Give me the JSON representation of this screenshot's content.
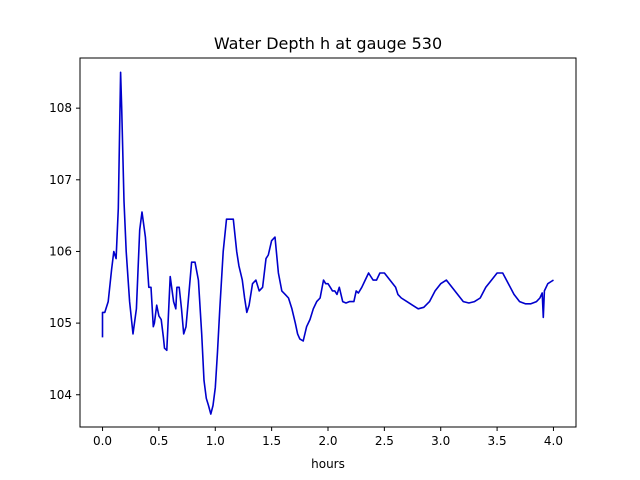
{
  "chart_data": {
    "type": "line",
    "title": "Water Depth h at gauge 530",
    "xlabel": "hours",
    "ylabel": "",
    "xlim": [
      -0.2,
      4.2
    ],
    "ylim": [
      103.55,
      108.7
    ],
    "xticks": [
      0.0,
      0.5,
      1.0,
      1.5,
      2.0,
      2.5,
      3.0,
      3.5,
      4.0
    ],
    "xtick_labels": [
      "0.0",
      "0.5",
      "1.0",
      "1.5",
      "2.0",
      "2.5",
      "3.0",
      "3.5",
      "4.0"
    ],
    "yticks": [
      104,
      105,
      106,
      107,
      108
    ],
    "ytick_labels": [
      "104",
      "105",
      "106",
      "107",
      "108"
    ],
    "grid": false,
    "series": [
      {
        "color": "#0000cc",
        "x": [
          0.0,
          0.0,
          0.02,
          0.05,
          0.08,
          0.1,
          0.12,
          0.14,
          0.16,
          0.17,
          0.19,
          0.21,
          0.24,
          0.27,
          0.3,
          0.33,
          0.35,
          0.38,
          0.41,
          0.43,
          0.45,
          0.46,
          0.48,
          0.5,
          0.52,
          0.54,
          0.55,
          0.57,
          0.6,
          0.63,
          0.65,
          0.66,
          0.68,
          0.7,
          0.72,
          0.74,
          0.76,
          0.79,
          0.82,
          0.85,
          0.88,
          0.9,
          0.92,
          0.94,
          0.96,
          0.98,
          1.0,
          1.02,
          1.04,
          1.07,
          1.1,
          1.13,
          1.16,
          1.19,
          1.21,
          1.24,
          1.26,
          1.28,
          1.3,
          1.33,
          1.36,
          1.39,
          1.42,
          1.45,
          1.47,
          1.5,
          1.53,
          1.56,
          1.59,
          1.62,
          1.65,
          1.68,
          1.71,
          1.73,
          1.75,
          1.78,
          1.81,
          1.84,
          1.87,
          1.9,
          1.93,
          1.96,
          1.98,
          2.0,
          2.02,
          2.04,
          2.06,
          2.08,
          2.1,
          2.13,
          2.16,
          2.19,
          2.21,
          2.23,
          2.25,
          2.27,
          2.3,
          2.33,
          2.36,
          2.38,
          2.4,
          2.43,
          2.46,
          2.5,
          2.55,
          2.6,
          2.62,
          2.65,
          2.7,
          2.75,
          2.8,
          2.85,
          2.9,
          2.95,
          3.0,
          3.05,
          3.1,
          3.15,
          3.2,
          3.25,
          3.3,
          3.35,
          3.4,
          3.45,
          3.5,
          3.55,
          3.6,
          3.65,
          3.7,
          3.75,
          3.8,
          3.85,
          3.88,
          3.9,
          3.91,
          3.92,
          3.95,
          3.98,
          4.0
        ],
        "y": [
          104.8,
          105.15,
          105.15,
          105.3,
          105.75,
          106.0,
          105.9,
          106.6,
          108.5,
          108.0,
          106.7,
          106.0,
          105.3,
          104.85,
          105.2,
          106.3,
          106.55,
          106.2,
          105.5,
          105.5,
          104.95,
          105.0,
          105.25,
          105.1,
          105.05,
          104.8,
          104.65,
          104.62,
          105.65,
          105.3,
          105.2,
          105.5,
          105.5,
          105.2,
          104.85,
          104.95,
          105.3,
          105.85,
          105.85,
          105.6,
          104.85,
          104.2,
          103.95,
          103.85,
          103.73,
          103.85,
          104.1,
          104.6,
          105.2,
          106.0,
          106.45,
          106.45,
          106.45,
          106.0,
          105.8,
          105.6,
          105.35,
          105.15,
          105.25,
          105.55,
          105.6,
          105.45,
          105.5,
          105.9,
          105.95,
          106.15,
          106.2,
          105.7,
          105.45,
          105.4,
          105.35,
          105.2,
          105.0,
          104.85,
          104.78,
          104.75,
          104.95,
          105.05,
          105.2,
          105.3,
          105.35,
          105.6,
          105.55,
          105.55,
          105.5,
          105.45,
          105.45,
          105.4,
          105.5,
          105.3,
          105.28,
          105.3,
          105.3,
          105.3,
          105.45,
          105.42,
          105.5,
          105.6,
          105.7,
          105.65,
          105.6,
          105.6,
          105.7,
          105.7,
          105.6,
          105.5,
          105.4,
          105.35,
          105.3,
          105.25,
          105.2,
          105.22,
          105.3,
          105.45,
          105.55,
          105.6,
          105.5,
          105.4,
          105.3,
          105.28,
          105.3,
          105.35,
          105.5,
          105.6,
          105.7,
          105.7,
          105.55,
          105.4,
          105.3,
          105.27,
          105.27,
          105.3,
          105.35,
          105.42,
          105.08,
          105.45,
          105.55,
          105.58,
          105.6
        ]
      }
    ]
  }
}
